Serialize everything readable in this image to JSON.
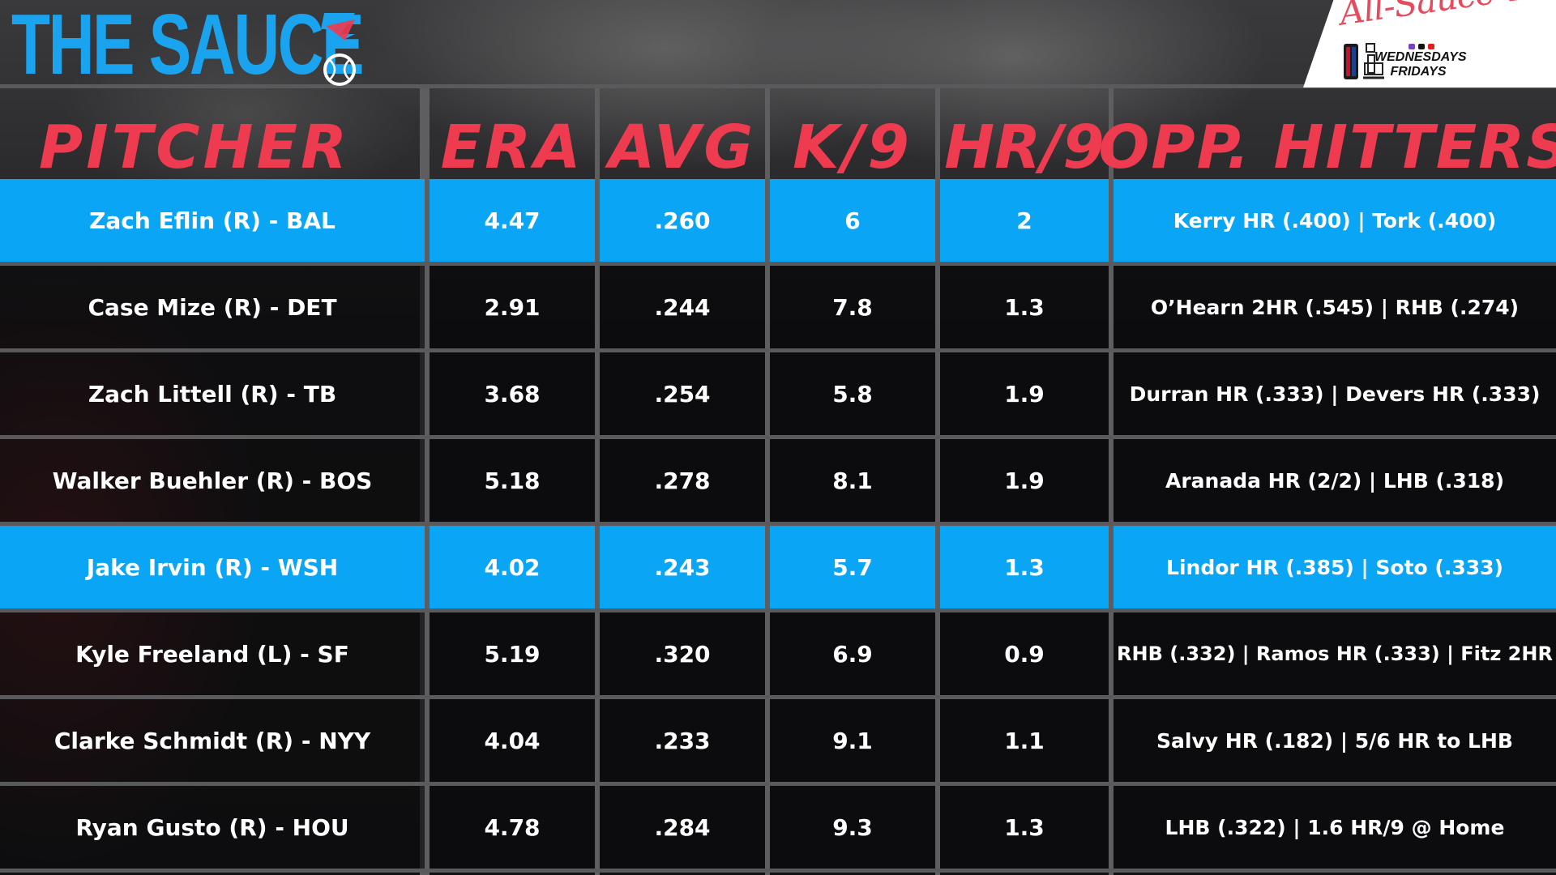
{
  "brand": {
    "title": "THE SAUCE"
  },
  "badge": {
    "script": "All-Sauce Team",
    "days": [
      "WEDNESDAYS",
      "FRIDAYS"
    ]
  },
  "columns": {
    "pitcher": "PITCHER",
    "era": "ERA",
    "avg": "AVG",
    "k9": "K/9",
    "hr9": "HR/9",
    "opp": "OPP. HITTERS"
  },
  "colors": {
    "brand_blue": "#1aa3ee",
    "header_red": "#ee3b4f",
    "highlight_blue": "#0aa6f5"
  },
  "rows": [
    {
      "pitcher": "Zach Eflin (R) - BAL",
      "era": "4.47",
      "avg": ".260",
      "k9": "6",
      "hr9": "2",
      "opp": "Kerry HR (.400) | Tork (.400)",
      "highlight": true
    },
    {
      "pitcher": "Case Mize (R) - DET",
      "era": "2.91",
      "avg": ".244",
      "k9": "7.8",
      "hr9": "1.3",
      "opp": "O’Hearn 2HR (.545) | RHB (.274)",
      "highlight": false
    },
    {
      "pitcher": "Zach Littell (R) - TB",
      "era": "3.68",
      "avg": ".254",
      "k9": "5.8",
      "hr9": "1.9",
      "opp": "Durran HR (.333) | Devers HR (.333)",
      "highlight": false
    },
    {
      "pitcher": "Walker Buehler (R) - BOS",
      "era": "5.18",
      "avg": ".278",
      "k9": "8.1",
      "hr9": "1.9",
      "opp": "Aranada HR (2/2) | LHB (.318)",
      "highlight": false
    },
    {
      "pitcher": "Jake Irvin (R) - WSH",
      "era": "4.02",
      "avg": ".243",
      "k9": "5.7",
      "hr9": "1.3",
      "opp": "Lindor HR (.385) | Soto (.333)",
      "highlight": true
    },
    {
      "pitcher": "Kyle Freeland (L) - SF",
      "era": "5.19",
      "avg": ".320",
      "k9": "6.9",
      "hr9": "0.9",
      "opp": "RHB (.332) | Ramos HR (.333) | Fitz 2HR",
      "highlight": false
    },
    {
      "pitcher": "Clarke Schmidt (R) - NYY",
      "era": "4.04",
      "avg": ".233",
      "k9": "9.1",
      "hr9": "1.1",
      "opp": "Salvy HR (.182) | 5/6 HR to LHB",
      "highlight": false
    },
    {
      "pitcher": "Ryan Gusto (R) - HOU",
      "era": "4.78",
      "avg": ".284",
      "k9": "9.3",
      "hr9": "1.3",
      "opp": "LHB (.322) | 1.6 HR/9 @ Home",
      "highlight": false
    }
  ]
}
